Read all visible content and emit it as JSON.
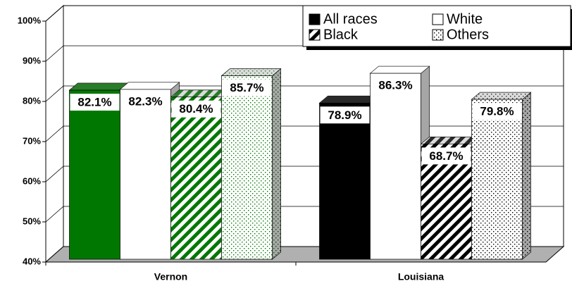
{
  "chart_data": {
    "type": "bar3d",
    "categories": [
      "Vernon",
      "Louisiana"
    ],
    "category_colors": [
      "#007700",
      "#000000"
    ],
    "series": [
      {
        "name": "All races",
        "pattern": "solid",
        "values": [
          82.1,
          78.9
        ],
        "value_labels": [
          "82.1%",
          "78.9%"
        ]
      },
      {
        "name": "White",
        "pattern": "white",
        "values": [
          82.3,
          86.3
        ],
        "value_labels": [
          "82.3%",
          "86.3%"
        ]
      },
      {
        "name": "Black",
        "pattern": "hatch",
        "values": [
          80.4,
          68.7
        ],
        "value_labels": [
          "80.4%",
          "68.7%"
        ]
      },
      {
        "name": "Others",
        "pattern": "dots",
        "values": [
          85.7,
          79.8
        ],
        "value_labels": [
          "85.7%",
          "79.8%"
        ]
      }
    ],
    "ylim": [
      40,
      100
    ],
    "yticks": [
      {
        "value": 40,
        "label": "40%"
      },
      {
        "value": 50,
        "label": "50%"
      },
      {
        "value": 60,
        "label": "60%"
      },
      {
        "value": 70,
        "label": "70%"
      },
      {
        "value": 80,
        "label": "80%"
      },
      {
        "value": 90,
        "label": "90%"
      },
      {
        "value": 100,
        "label": "100%"
      }
    ],
    "grid": true
  }
}
